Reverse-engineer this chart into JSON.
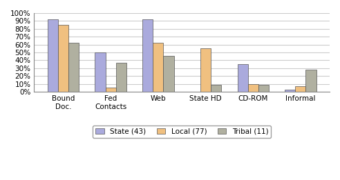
{
  "categories": [
    "Bound\nDoc.",
    "Fed\nContacts",
    "Web",
    "State HD",
    "CD-ROM",
    "Informal"
  ],
  "series": {
    "State (43)": [
      92,
      50,
      92,
      0,
      35,
      3
    ],
    "Local (77)": [
      85,
      5,
      62,
      55,
      10,
      7
    ],
    "Tribal (11)": [
      62,
      37,
      46,
      9,
      9,
      28
    ]
  },
  "colors": {
    "State (43)": "#aaaadd",
    "Local (77)": "#f0c080",
    "Tribal (11)": "#b0b0a0"
  },
  "legend_labels": [
    "State (43)",
    "Local (77)",
    "Tribal (11)"
  ],
  "ylim": [
    0,
    100
  ],
  "yticks": [
    0,
    10,
    20,
    30,
    40,
    50,
    60,
    70,
    80,
    90,
    100
  ],
  "yticklabels": [
    "0%",
    "10%",
    "20%",
    "30%",
    "40%",
    "50%",
    "60%",
    "70%",
    "80%",
    "90%",
    "100%"
  ],
  "background_color": "#ffffff",
  "plot_bg_color": "#ffffff",
  "grid_color": "#cccccc",
  "bar_edge_color": "#555555",
  "figure_edge_color": "#999999"
}
